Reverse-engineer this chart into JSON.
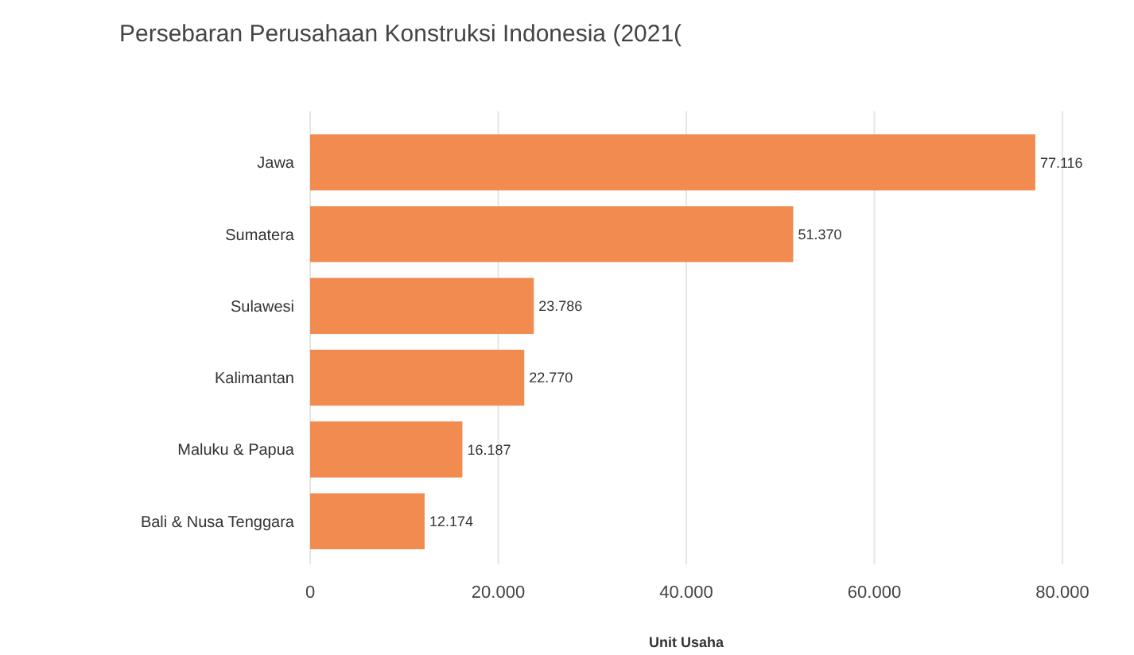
{
  "chart_data": {
    "type": "bar",
    "orientation": "horizontal",
    "title": "Persebaran Perusahaan Konstruksi Indonesia (2021(",
    "xlabel": "Unit Usaha",
    "categories": [
      "Jawa",
      "Sumatera",
      "Sulawesi",
      "Kalimantan",
      "Maluku & Papua",
      "Bali & Nusa Tenggara"
    ],
    "values": [
      77116,
      51370,
      23786,
      22770,
      16187,
      12174
    ],
    "value_labels": [
      "77.116",
      "51.370",
      "23.786",
      "22.770",
      "16.187",
      "12.174"
    ],
    "color": "#f28b50",
    "xlim": [
      0,
      80000
    ],
    "xticks": [
      0,
      {
        "value": 20000,
        "label": "20.000"
      },
      {
        "value": 40000,
        "label": "40.000"
      },
      {
        "value": 60000,
        "label": "60.000"
      },
      {
        "value": 80000,
        "label": "80.000"
      }
    ],
    "grid": "x"
  }
}
